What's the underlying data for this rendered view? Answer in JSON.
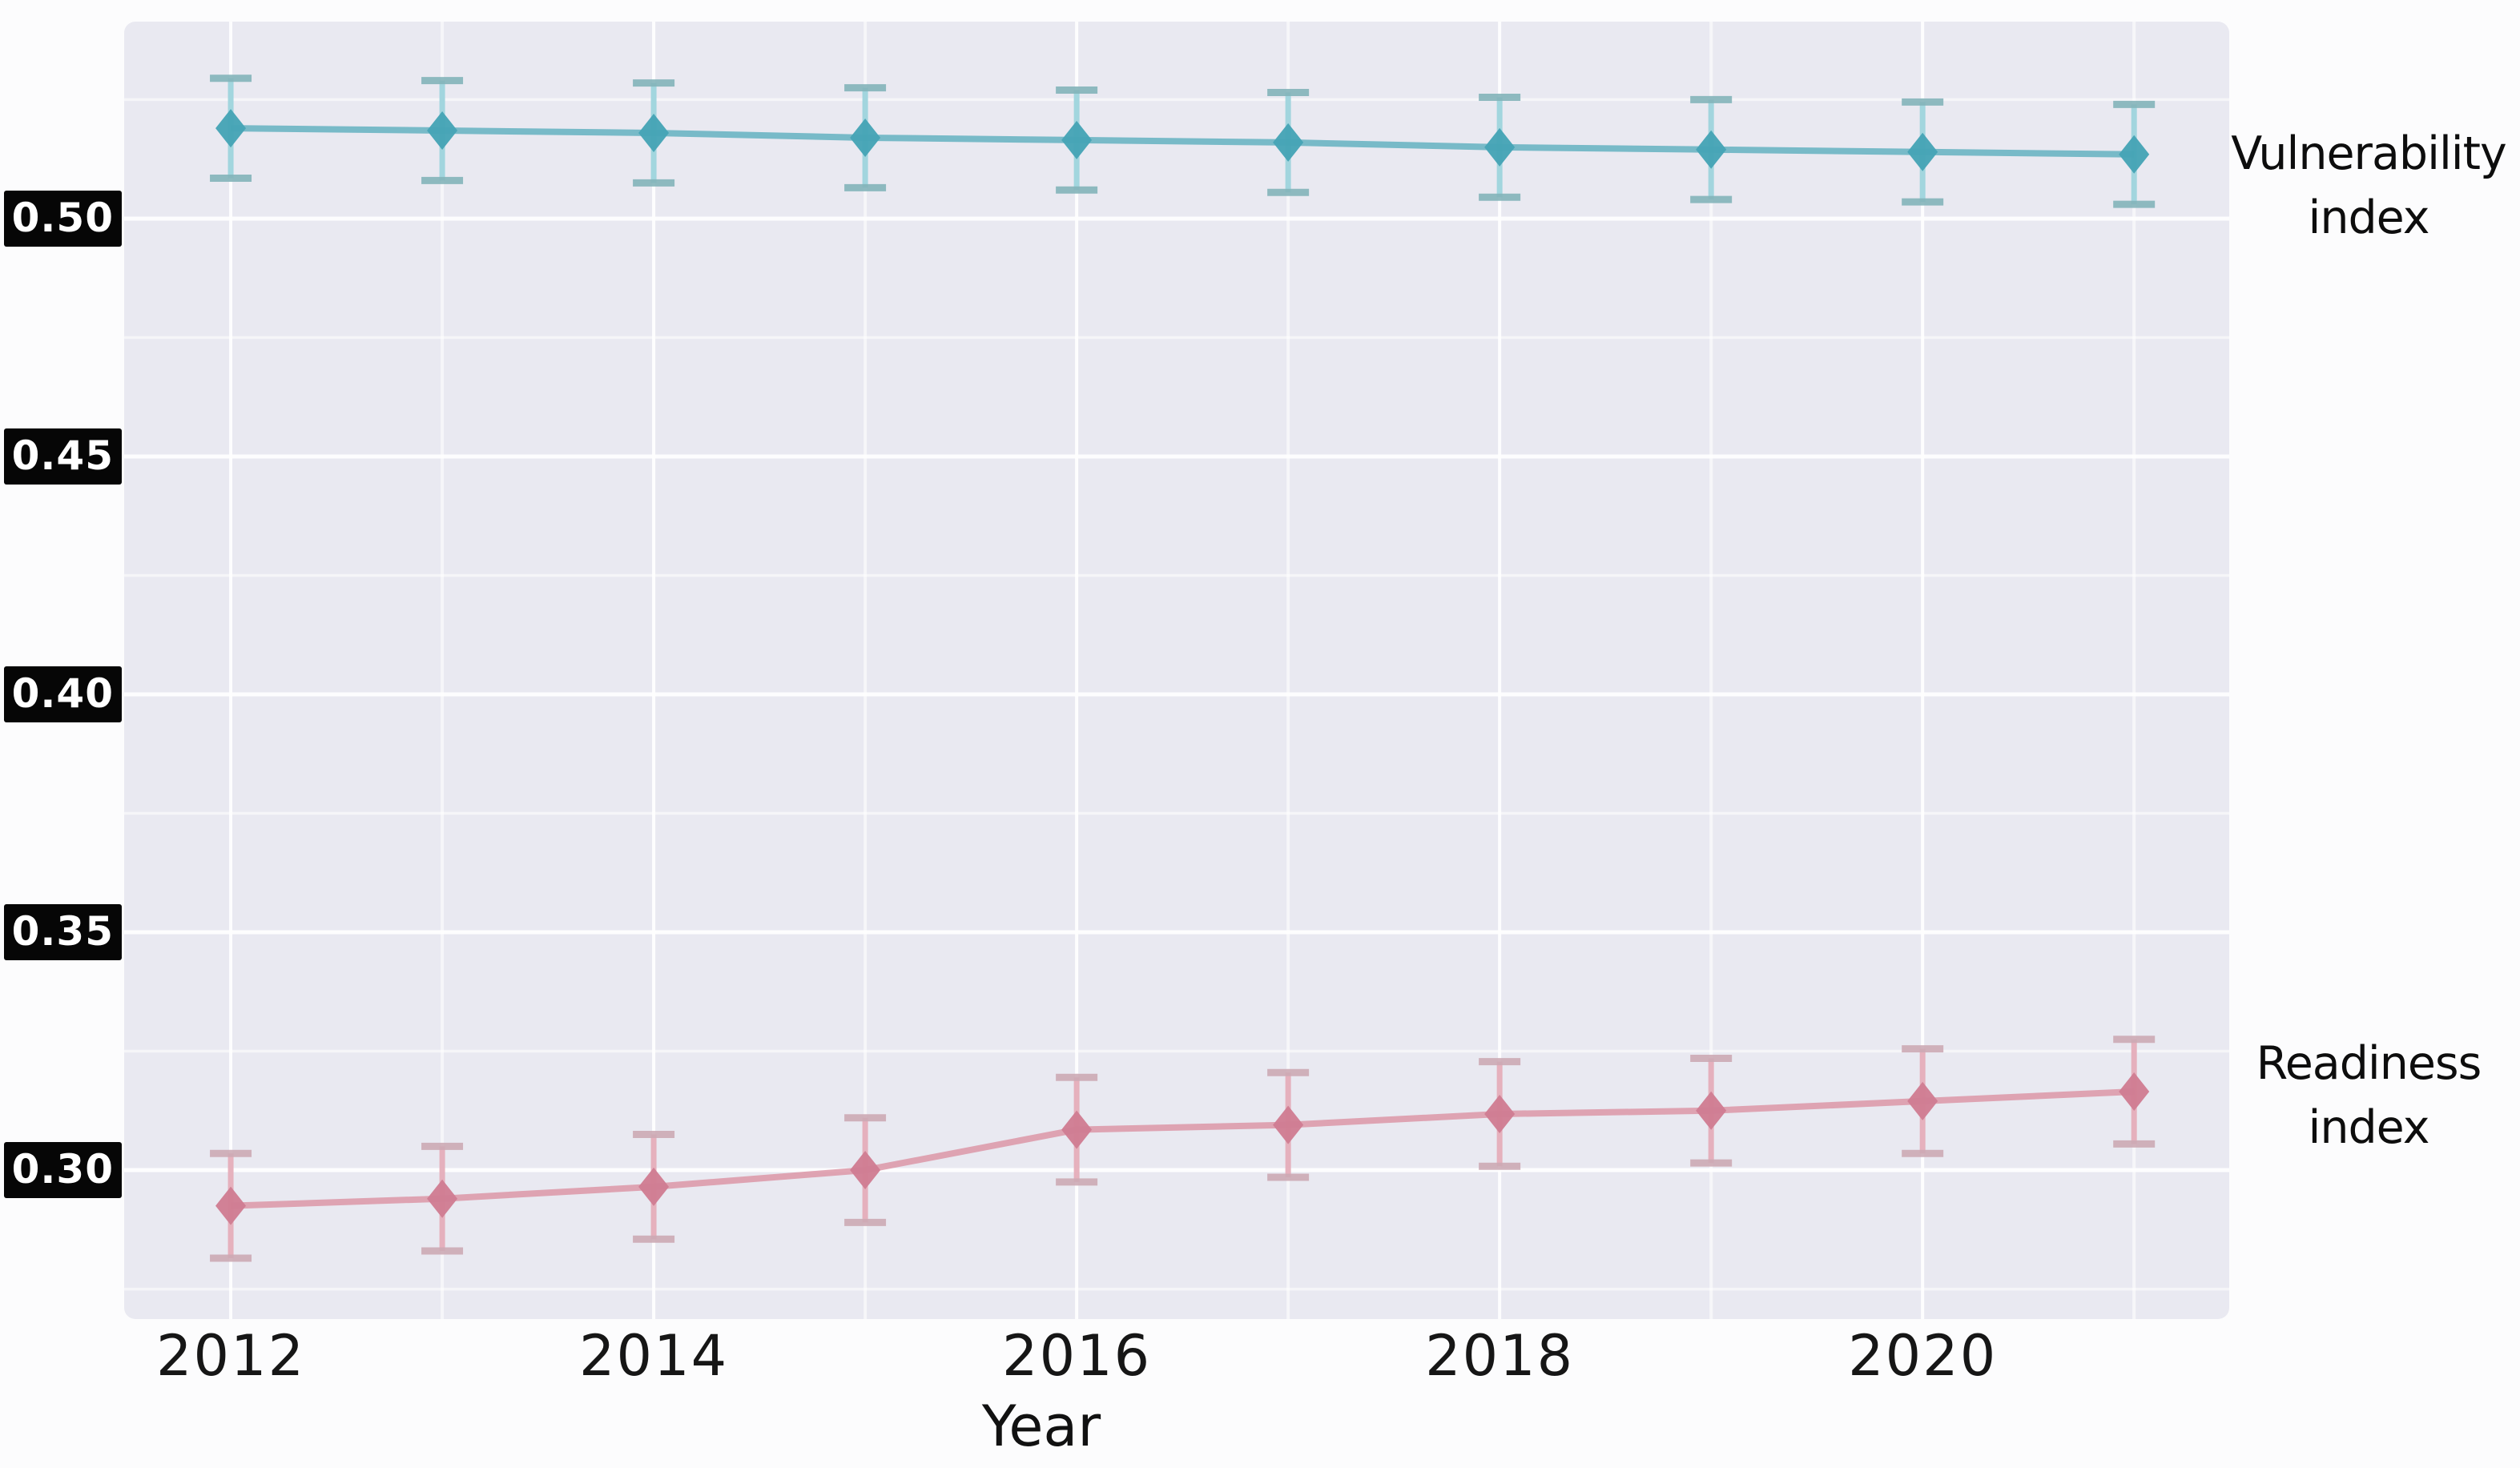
{
  "figure": {
    "background": "#fcfcfd",
    "plot_background": "#e9e9f1",
    "grid_color": "#ffffff",
    "ytick_box_bg": "#060606",
    "ytick_box_fg": "#ffffff",
    "text_color": "#161616"
  },
  "chart_data": {
    "type": "line",
    "title": "",
    "xlabel": "Year",
    "ylabel": "",
    "grid": true,
    "legend_position": "right-outside",
    "x": [
      2012,
      2013,
      2014,
      2015,
      2016,
      2017,
      2018,
      2019,
      2020,
      2021
    ],
    "xlim": [
      2011.496,
      2021.45
    ],
    "ylim": [
      0.2687,
      0.5414
    ],
    "xtick_years": [
      2012,
      2014,
      2016,
      2018,
      2020
    ],
    "xtick_labels": [
      "2012",
      "2014",
      "2016",
      "2018",
      "2020"
    ],
    "ytick_values": [
      0.5,
      0.45,
      0.4,
      0.35,
      0.3
    ],
    "ytick_labels": [
      "0.50",
      "0.45",
      "0.40",
      "0.35",
      "0.30"
    ],
    "minor_grid_y_step": 0.025,
    "series": [
      {
        "name": "Vulnerability index",
        "values": [
          0.519,
          0.5185,
          0.518,
          0.517,
          0.5165,
          0.516,
          0.515,
          0.5145,
          0.514,
          0.5135
        ],
        "errors": [
          0.0105,
          0.0105,
          0.0105,
          0.0105,
          0.0105,
          0.0105,
          0.0105,
          0.0105,
          0.0105,
          0.0105
        ],
        "line_color": "#64b2c1",
        "marker_color": "#46a4b6",
        "error_color": "#9ed4dd",
        "cap_color": "#84b4ba"
      },
      {
        "name": "Readiness index",
        "values": [
          0.2925,
          0.294,
          0.2965,
          0.3,
          0.3085,
          0.3095,
          0.3118,
          0.3125,
          0.3145,
          0.3165
        ],
        "errors": [
          0.011,
          0.011,
          0.011,
          0.011,
          0.011,
          0.011,
          0.011,
          0.011,
          0.011,
          0.011
        ],
        "line_color": "#dc97a7",
        "marker_color": "#d07d93",
        "error_color": "#e5adba",
        "cap_color": "#cdaab5"
      }
    ]
  }
}
